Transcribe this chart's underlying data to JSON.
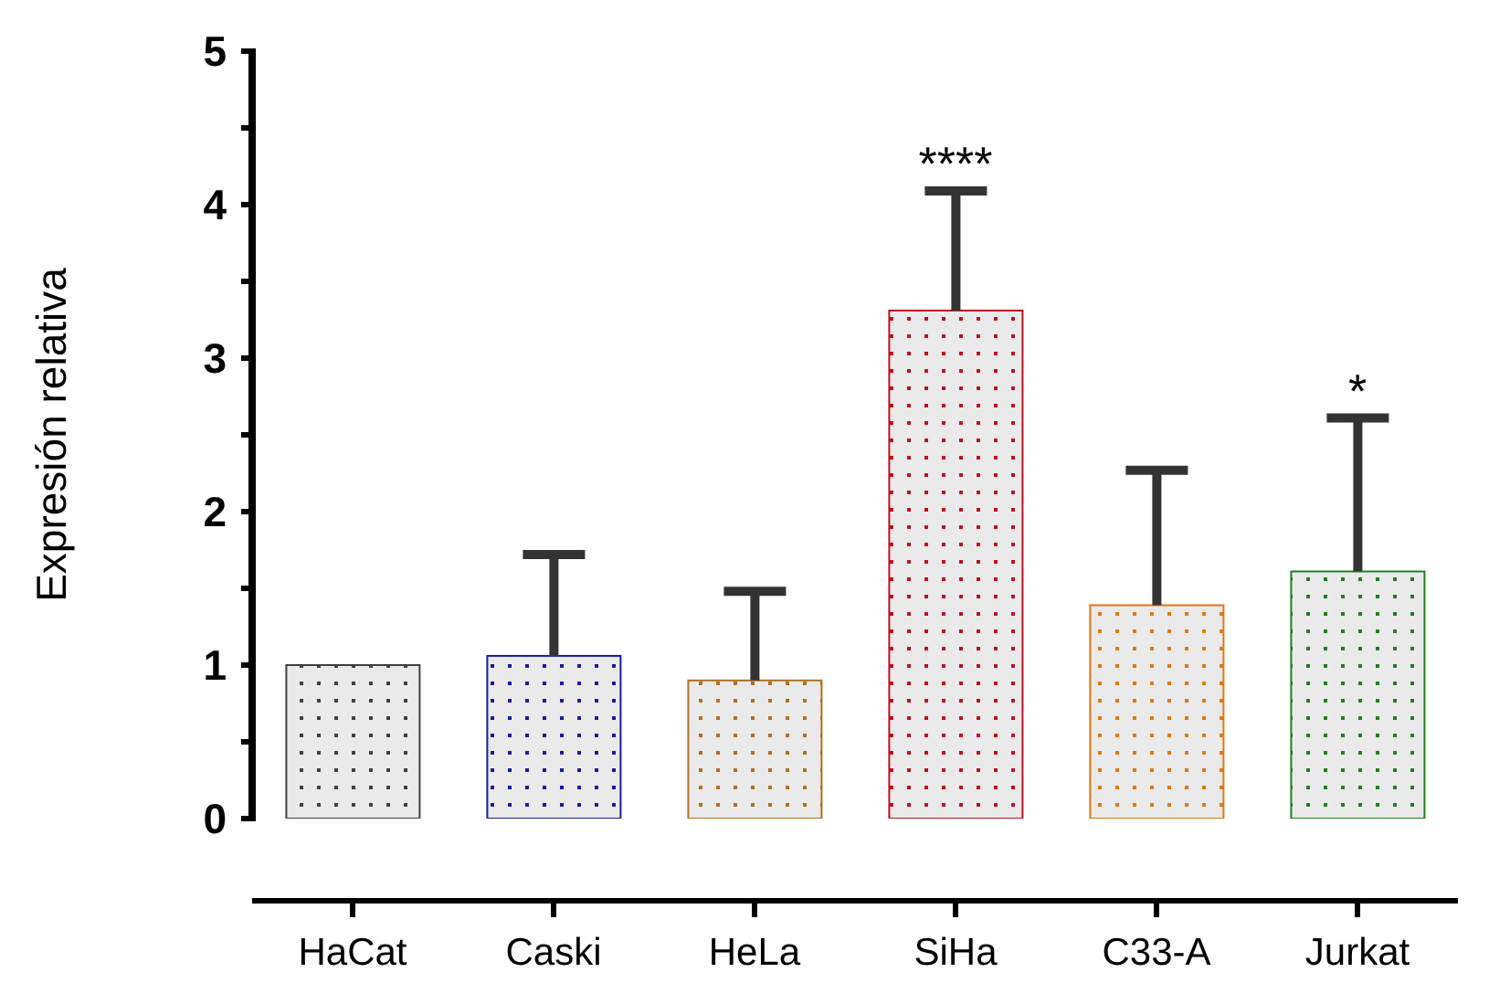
{
  "chart_data": {
    "type": "bar",
    "ylabel": "Expresión relativa",
    "categories": [
      "HaCat",
      "Caski",
      "HeLa",
      "SiHa",
      "C33-A",
      "Jurkat"
    ],
    "values": [
      1.0,
      1.06,
      0.9,
      3.31,
      1.39,
      1.61
    ],
    "errors": [
      null,
      [
        1.06,
        1.72
      ],
      [
        0.9,
        1.48
      ],
      [
        3.31,
        4.09
      ],
      [
        1.39,
        2.27
      ],
      [
        1.61,
        2.61
      ]
    ],
    "colors": [
      "#404040",
      "#1a1aa0",
      "#b07020",
      "#c01020",
      "#e07810",
      "#208020"
    ],
    "ylim": [
      0,
      5
    ],
    "yticks": [
      0,
      {
        "value": 0.5,
        "label": null
      },
      1,
      {
        "value": 1.5,
        "label": null
      },
      2,
      {
        "value": 2.5,
        "label": null
      },
      3,
      {
        "value": 3.5,
        "label": null
      },
      4,
      {
        "value": 4.5,
        "label": null
      },
      5
    ],
    "annotations": [
      {
        "text": "****",
        "x": "SiHa",
        "y": 4.09
      },
      {
        "text": "*",
        "x": "Jurkat",
        "y": 2.61
      }
    ],
    "grid": false,
    "legend": false
  }
}
